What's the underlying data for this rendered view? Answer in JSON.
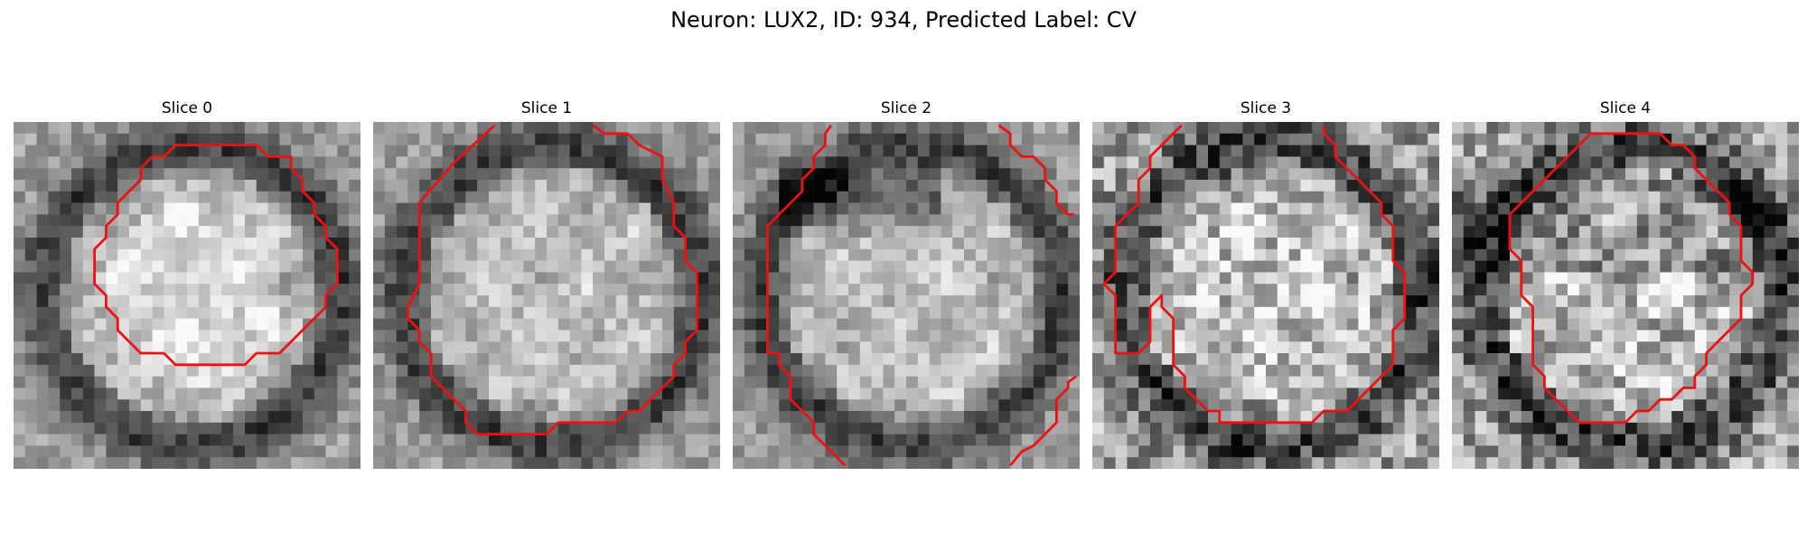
{
  "figure": {
    "title": "Neuron: LUX2, ID: 934, Predicted Label: CV"
  },
  "panels": [
    {
      "title": "Slice 0",
      "seed": 11,
      "contrast": "bright-center"
    },
    {
      "title": "Slice 1",
      "seed": 23,
      "contrast": "smooth"
    },
    {
      "title": "Slice 2",
      "seed": 37,
      "contrast": "dark-top"
    },
    {
      "title": "Slice 3",
      "seed": 49,
      "contrast": "noisy"
    },
    {
      "title": "Slice 4",
      "seed": 61,
      "contrast": "noisy-dark"
    }
  ],
  "colors": {
    "contour": "#ee1111"
  }
}
